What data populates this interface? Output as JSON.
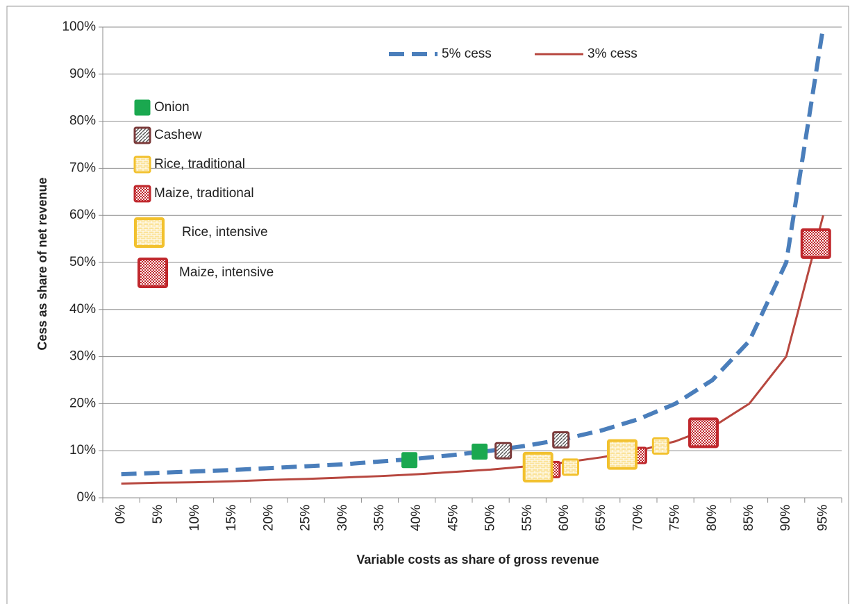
{
  "chart_data": {
    "type": "line",
    "x_label": "Variable costs as share of gross revenue",
    "y_label": "Cess as share of net revenue",
    "categories": [
      "0%",
      "5%",
      "10%",
      "15%",
      "20%",
      "25%",
      "30%",
      "35%",
      "40%",
      "45%",
      "50%",
      "55%",
      "60%",
      "65%",
      "70%",
      "75%",
      "80%",
      "85%",
      "90%",
      "95%"
    ],
    "ylim": [
      0,
      100
    ],
    "yticks": [
      {
        "value": 0,
        "label": "0%"
      },
      {
        "value": 10,
        "label": "10%"
      },
      {
        "value": 20,
        "label": "20%"
      },
      {
        "value": 30,
        "label": "30%"
      },
      {
        "value": 40,
        "label": "40%"
      },
      {
        "value": 50,
        "label": "50%"
      },
      {
        "value": 60,
        "label": "60%"
      },
      {
        "value": 70,
        "label": "70%"
      },
      {
        "value": 80,
        "label": "80%"
      },
      {
        "value": 90,
        "label": "90%"
      },
      {
        "value": 100,
        "label": "100%"
      }
    ],
    "grid": true,
    "series": [
      {
        "name": "5% cess",
        "color": "#4a7ebb",
        "dashed": true,
        "values": [
          5,
          5.3,
          5.6,
          5.9,
          6.3,
          6.7,
          7.1,
          7.7,
          8.3,
          9.1,
          10,
          11.1,
          12.5,
          14.3,
          16.7,
          20,
          25,
          33.3,
          50,
          100
        ]
      },
      {
        "name": "3% cess",
        "color": "#b7473f",
        "dashed": false,
        "values": [
          3,
          3.2,
          3.3,
          3.5,
          3.8,
          4,
          4.3,
          4.6,
          5,
          5.5,
          6,
          6.7,
          7.5,
          8.6,
          10,
          12,
          15,
          20,
          30,
          60
        ]
      }
    ],
    "markers": [
      {
        "name": "Onion",
        "color": "#1aa84f",
        "x": [
          39,
          48.5
        ],
        "values": [
          8,
          9.8
        ]
      },
      {
        "name": "Cashew",
        "color": "#7b3a3a",
        "x": [
          51.7,
          59.5
        ],
        "values": [
          10,
          12.3
        ]
      },
      {
        "name": "Rice, traditional",
        "color": "#f2c12e",
        "x": [
          60.8,
          73
        ],
        "values": [
          6.5,
          11
        ]
      },
      {
        "name": "Maize, traditional",
        "color": "#c0282d",
        "x": [
          58.3,
          70
        ],
        "values": [
          6,
          9
        ]
      },
      {
        "name": "Rice, intensive",
        "color": "#f2c12e",
        "x": [
          56.4,
          67.8
        ],
        "values": [
          6.5,
          9.2
        ]
      },
      {
        "name": "Maize, intensive",
        "color": "#c0282d",
        "x": [
          78.8,
          94
        ],
        "values": [
          13.8,
          54
        ]
      }
    ]
  }
}
